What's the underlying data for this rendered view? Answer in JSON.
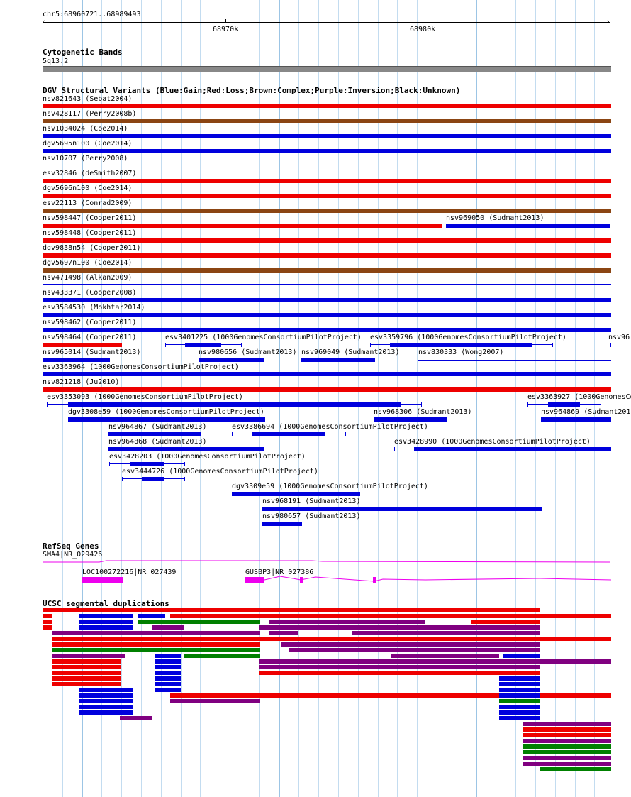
{
  "ruler": {
    "position": "chr5:68960721..68989493",
    "ticks": [
      "68970k",
      "68980k"
    ]
  },
  "colors": {
    "gain": "#0000dd",
    "loss": "#ee0000",
    "complex": "#8b4513",
    "inversion": "#800080",
    "unknown": "#000000",
    "gene": "#ee00ee",
    "grid": "#c3dcf0",
    "segdup_green": "#008000",
    "cyto_band": "#888888"
  },
  "tracks": {
    "cytobands": {
      "title": "Cytogenetic Bands",
      "band": "5q13.2"
    },
    "dgv": {
      "title": "DGV Structural Variants (Blue:Gain;Red:Loss;Brown:Complex;Purple:Inversion;Black:Unknown)",
      "variants": [
        "nsv821643 (Sebat2004)",
        "nsv428117 (Perry2008b)",
        "nsv1034024 (Coe2014)",
        "dgv5695n100 (Coe2014)",
        "nsv10707 (Perry2008)",
        "esv32846 (deSmith2007)",
        "dgv5696n100 (Coe2014)",
        "esv22113 (Conrad2009)",
        "nsv598447 (Cooper2011)",
        "nsv969050 (Sudmant2013)",
        "nsv598448 (Cooper2011)",
        "dgv9838n54 (Cooper2011)",
        "dgv5697n100 (Coe2014)",
        "nsv471498 (Alkan2009)",
        "nsv433371 (Cooper2008)",
        "esv3584530 (Mokhtar2014)",
        "nsv598462 (Cooper2011)",
        "nsv598464 (Cooper2011)",
        "esv3401225 (1000GenomesConsortiumPilotProject)",
        "esv3359796 (1000GenomesConsortiumPilotProject)",
        "nsv96",
        "nsv965014 (Sudmant2013)",
        "nsv980656 (Sudmant2013)",
        "nsv969049 (Sudmant2013)",
        "nsv830333 (Wong2007)",
        "esv3363964 (1000GenomesConsortiumPilotProject)",
        "nsv821218 (Ju2010)",
        "esv3353093 (1000GenomesConsortiumPilotProject)",
        "esv3363927 (1000GenomesCo",
        "dgv3308e59 (1000GenomesConsortiumPilotProject)",
        "nsv968306 (Sudmant2013)",
        "nsv964869 (Sudmant201",
        "nsv964867 (Sudmant2013)",
        "esv3386694 (1000GenomesConsortiumPilotProject)",
        "nsv964868 (Sudmant2013)",
        "esv3428990 (1000GenomesConsortiumPilotProject)",
        "esv3428203 (1000GenomesConsortiumPilotProject)",
        "esv3444726 (1000GenomesConsortiumPilotProject)",
        "dgv3309e59 (1000GenomesConsortiumPilotProject)",
        "nsv968191 (Sudmant2013)",
        "nsv980657 (Sudmant2013)"
      ]
    },
    "refseq": {
      "title": "RefSeq Genes",
      "genes": [
        "SMA4|NR_029426",
        "LOC100272216|NR_027439",
        "GUSBP3|NR_027386"
      ]
    },
    "segdups": {
      "title": "UCSC segmental duplications"
    }
  }
}
